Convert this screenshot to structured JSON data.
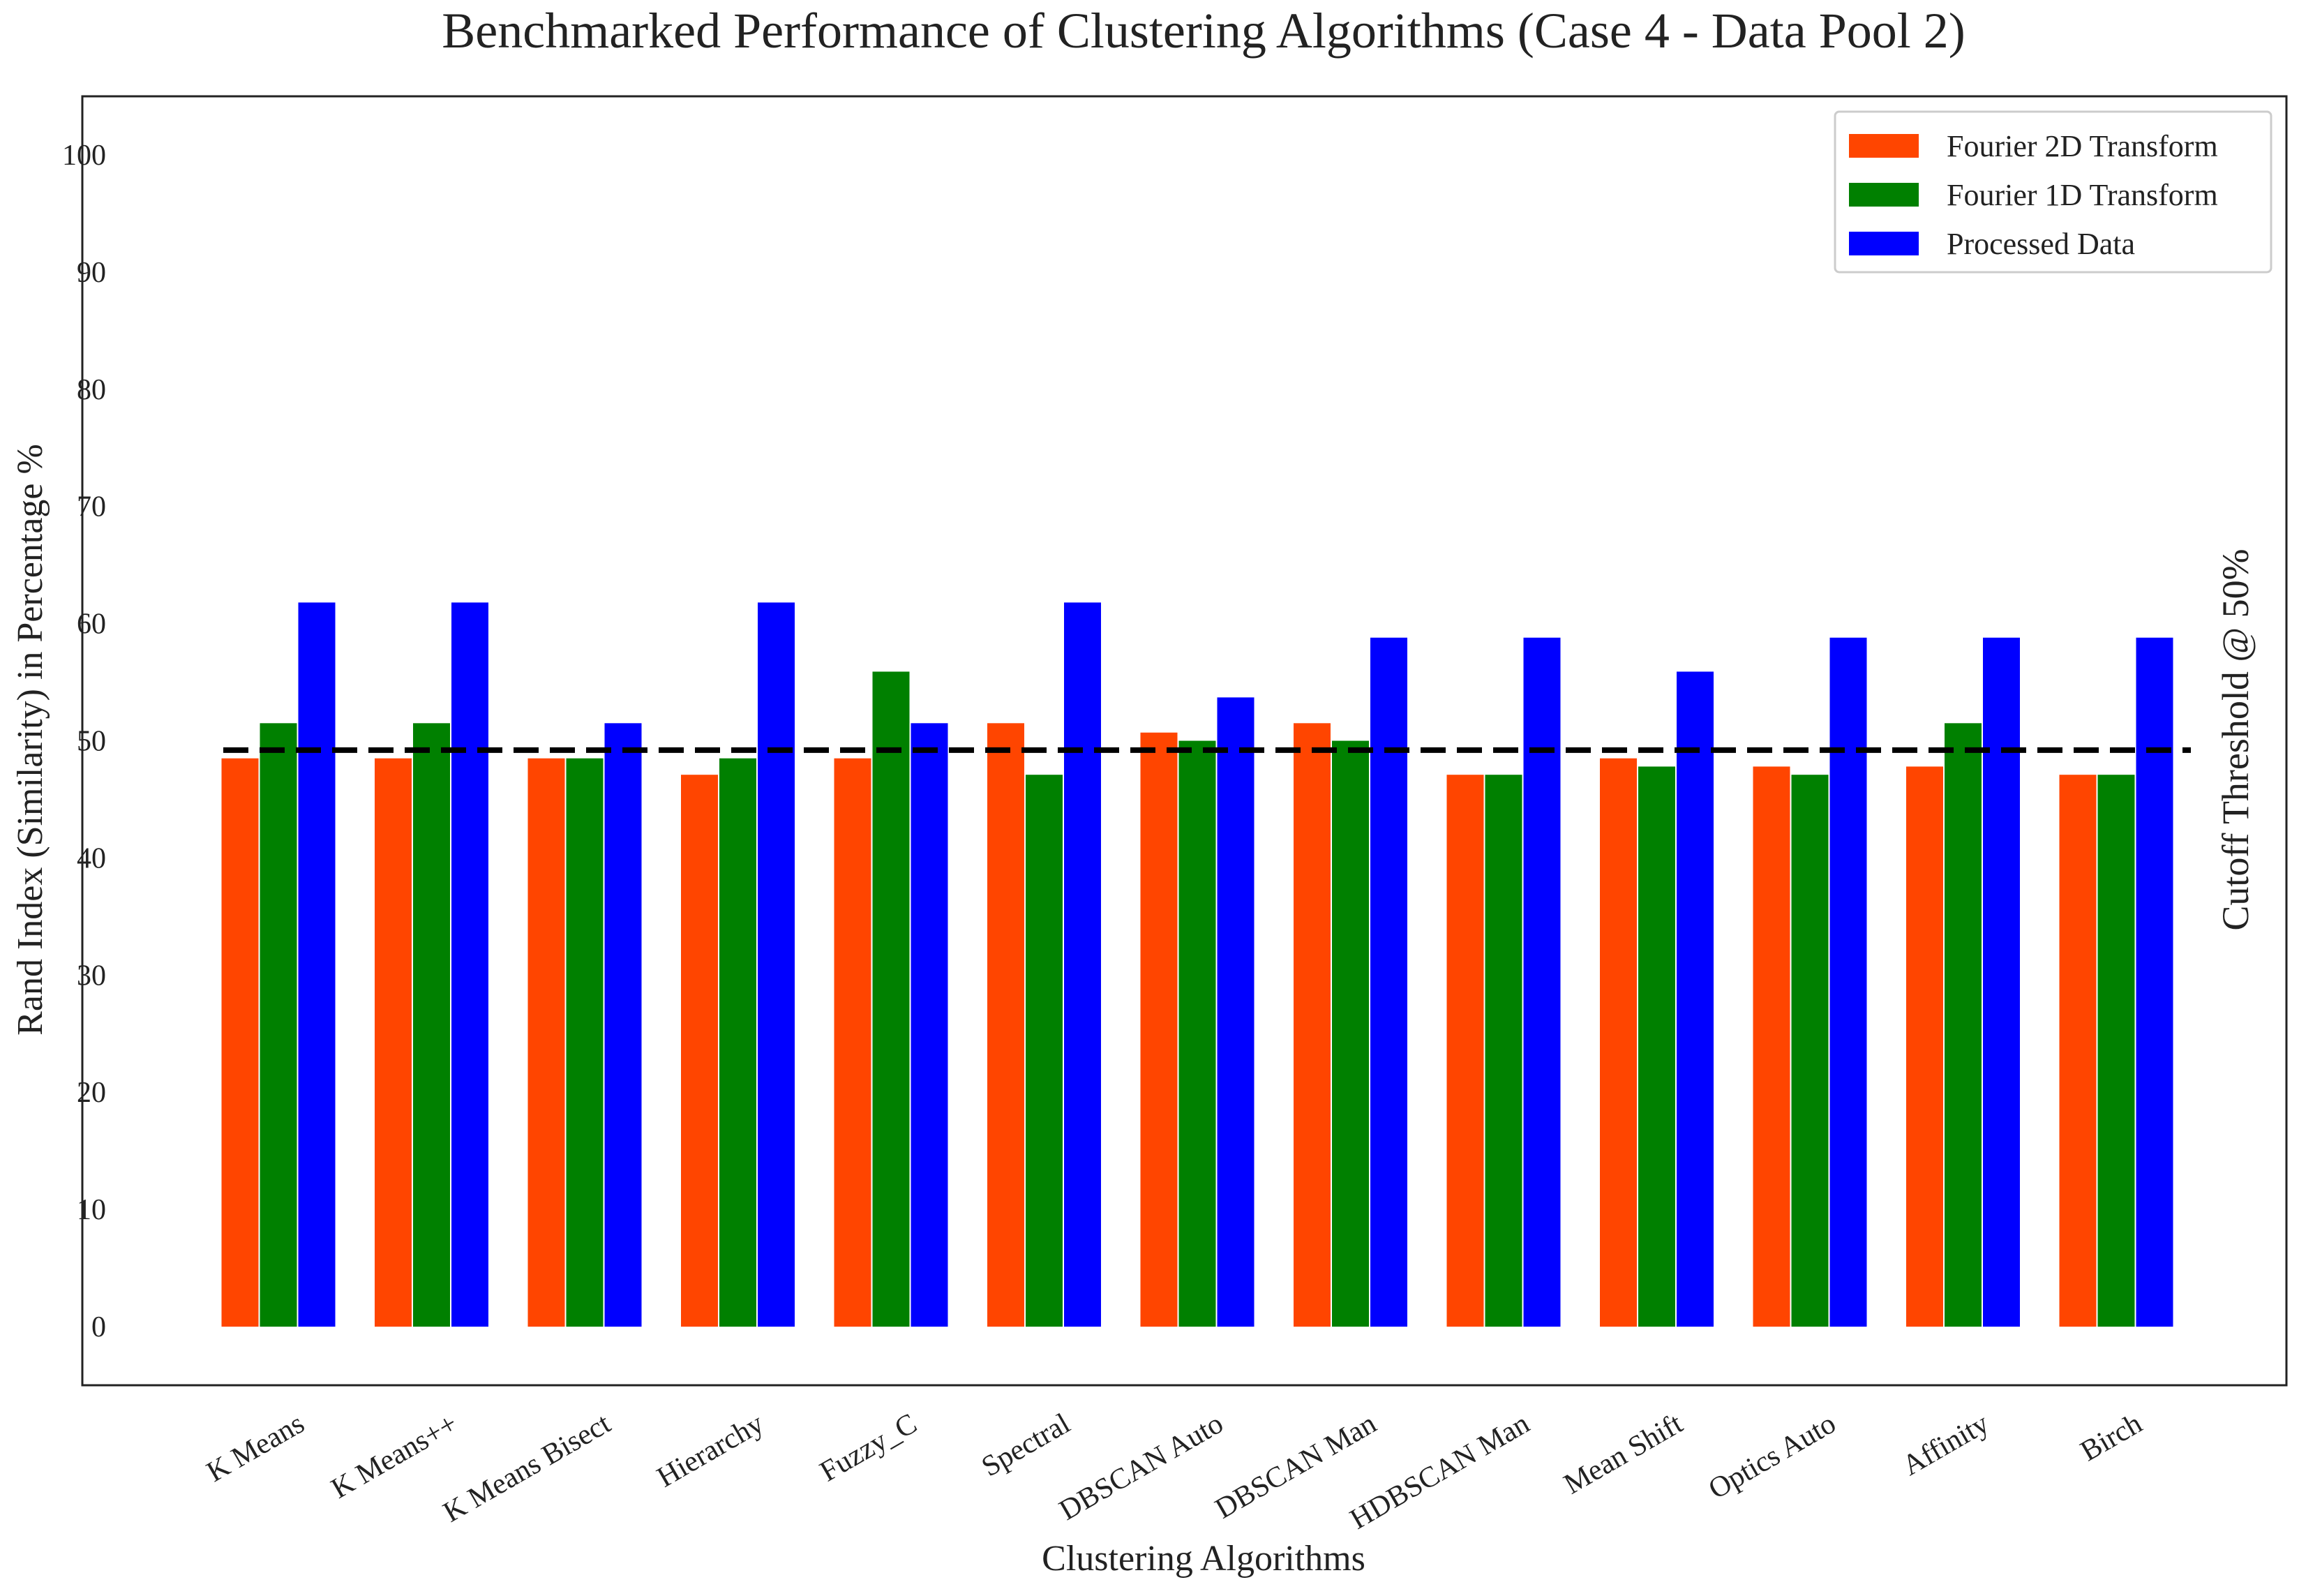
{
  "chart_data": {
    "type": "bar",
    "title": "Benchmarked Performance of Clustering Algorithms (Case 4 - Data Pool 2)",
    "xlabel": "Clustering Algorithms",
    "ylabel": "Rand Index (Similarity) in Percentage %",
    "ylim": [
      -5,
      105
    ],
    "yticks": [
      0,
      10,
      20,
      30,
      40,
      50,
      60,
      70,
      80,
      90,
      100
    ],
    "grid": false,
    "legend_position": "top-right",
    "categories": [
      "K Means",
      "K Means++",
      "K Means Bisect",
      "Hierarchy",
      "Fuzzy_C",
      "Spectral",
      "DBSCAN Auto",
      "DBSCAN Man",
      "HDBSCAN Man",
      "Mean Shift",
      "Optics Auto",
      "Affinity",
      "Birch"
    ],
    "series": [
      {
        "name": "Fourier 2D Transform",
        "color": "#ff4500",
        "values": [
          48.5,
          48.5,
          48.5,
          47.1,
          48.5,
          51.5,
          50.7,
          51.5,
          47.1,
          48.5,
          47.8,
          47.8,
          47.1
        ]
      },
      {
        "name": "Fourier 1D Transform",
        "color": "#008000",
        "values": [
          51.5,
          51.5,
          48.5,
          48.5,
          55.9,
          47.1,
          50.0,
          50.0,
          47.1,
          47.8,
          47.1,
          51.5,
          47.1
        ]
      },
      {
        "name": "Processed Data",
        "color": "#0000ff",
        "values": [
          61.8,
          61.8,
          51.5,
          61.8,
          51.5,
          61.8,
          53.7,
          58.8,
          58.8,
          55.9,
          58.8,
          58.8,
          58.8
        ]
      }
    ],
    "threshold": {
      "value": 49.2,
      "label": "Cutoff Threshold @ 50%",
      "color": "#000000"
    }
  }
}
